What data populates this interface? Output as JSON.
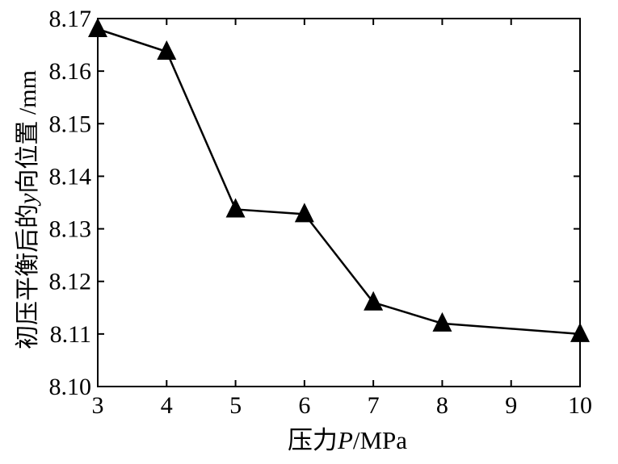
{
  "chart_data": {
    "type": "line",
    "title": "",
    "xlabel": "压力P/MPa",
    "xlabel_parts": {
      "prefix": "压力",
      "italic": "P",
      "suffix": "/MPa"
    },
    "ylabel": "初压平衡后的y向位置 /mm",
    "ylabel_parts": {
      "prefix": "初压平衡后的",
      "italic": "y",
      "suffix": "向位置 /mm"
    },
    "xlim": [
      3,
      10
    ],
    "ylim": [
      8.1,
      8.17
    ],
    "x_ticks": [
      "3",
      "4",
      "5",
      "6",
      "7",
      "8",
      "9",
      "10"
    ],
    "y_ticks": [
      "8.10",
      "8.11",
      "8.12",
      "8.13",
      "8.14",
      "8.15",
      "8.16",
      "8.17"
    ],
    "grid": false,
    "marker": "triangle",
    "line_color": "#000000",
    "series": [
      {
        "x": [
          3,
          4,
          5,
          6,
          7,
          8,
          10
        ],
        "y": [
          8.168,
          8.1637,
          8.1337,
          8.1328,
          8.116,
          8.112,
          8.11
        ]
      }
    ]
  }
}
